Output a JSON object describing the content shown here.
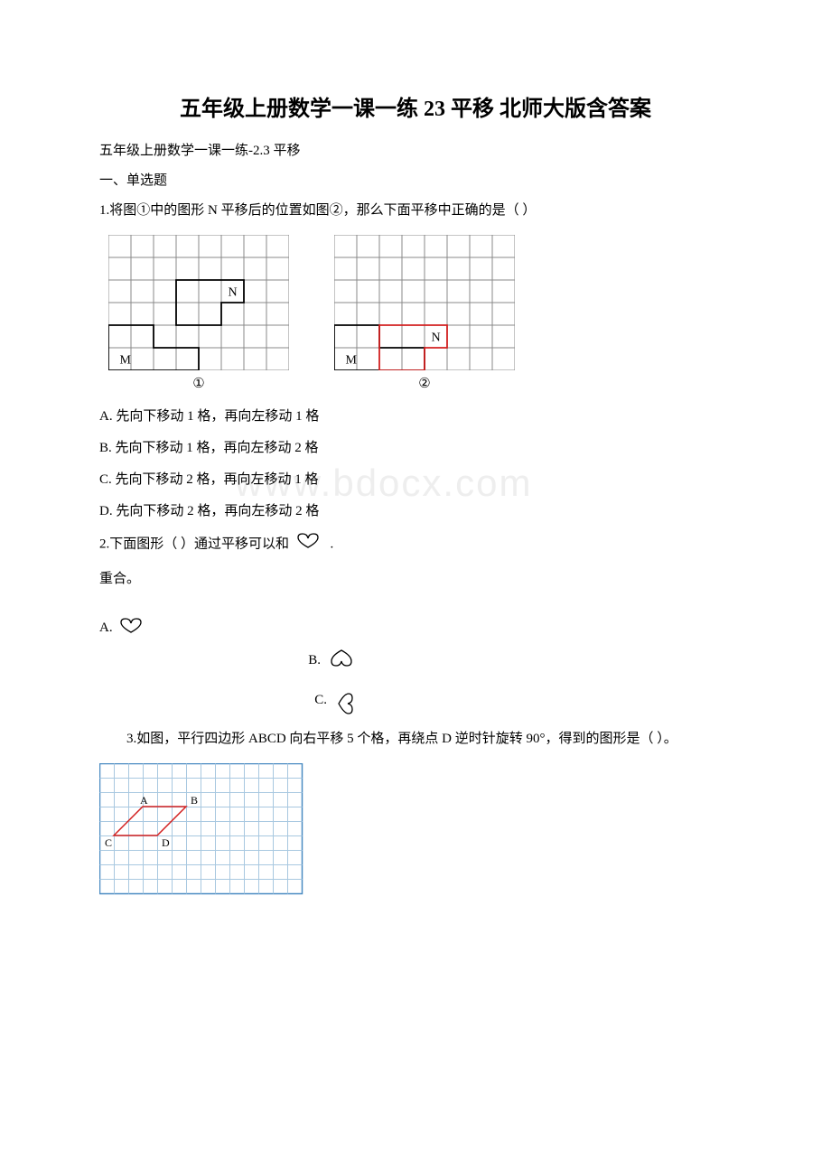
{
  "title": "五年级上册数学一课一练 23 平移 北师大版含答案",
  "subtitle": "五年级上册数学一课一练-2.3 平移",
  "section1_header": "一、单选题",
  "q1": {
    "stem": "1.将图①中的图形 N 平移后的位置如图②，那么下面平移中正确的是（ ）",
    "caption1": "①",
    "caption2": "②",
    "optA": "A. 先向下移动 1 格，再向左移动 1 格",
    "optB": "B. 先向下移动 1 格，再向左移动 2 格",
    "optC": "C. 先向下移动 2 格，再向左移动 1 格",
    "optD": "D. 先向下移动 2 格，再向左移动 2 格",
    "grid": {
      "cols": 8,
      "rows": 6,
      "cell": 25,
      "stroke": "#888888",
      "shape_stroke_black": "#000000",
      "shape_stroke_red": "#d22020",
      "label_M": "M",
      "label_N": "N"
    }
  },
  "q2": {
    "stem_prefix": "2.下面图形（ ）通过平移可以和 ",
    "stem_suffix": ".",
    "stem_line2": "重合。",
    "optA_label": "A. ",
    "optB_label": "B. ",
    "optC_label": "C. ",
    "heart_color": "#000000"
  },
  "watermark_text": "www.bdocx.com",
  "q3": {
    "stem": "3.如图，平行四边形 ABCD 向右平移 5 个格，再绕点 D 逆时针旋转 90°，得到的图形是（  ）。",
    "grid": {
      "cols": 14,
      "rows": 9,
      "cell": 16,
      "border": "#4a8bc2",
      "grid_line": "#a8c8e0",
      "shape_color": "#d22020",
      "labels": {
        "A": "A",
        "B": "B",
        "C": "C",
        "D": "D"
      }
    }
  }
}
